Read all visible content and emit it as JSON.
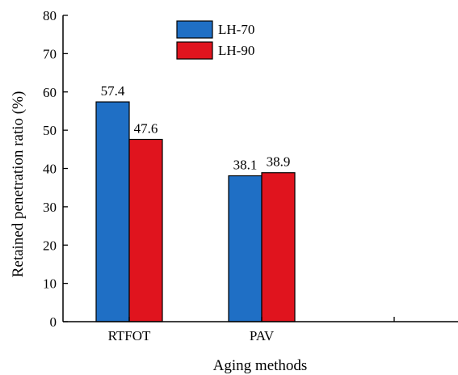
{
  "chart_data": {
    "type": "bar",
    "categories": [
      "RTFOT",
      "PAV"
    ],
    "series": [
      {
        "name": "LH-70",
        "values": [
          57.4,
          38.1
        ],
        "color": "#1f6fc5"
      },
      {
        "name": "LH-90",
        "values": [
          47.6,
          38.9
        ],
        "color": "#e0141e"
      }
    ],
    "data_labels": [
      [
        "57.4",
        "38.1"
      ],
      [
        "47.6",
        "38.9"
      ]
    ],
    "xlabel": "Aging methods",
    "ylabel": "Retained penetration ratio (%)",
    "ylim": [
      0,
      80
    ],
    "yticks": [
      0,
      10,
      20,
      30,
      40,
      50,
      60,
      70,
      80
    ],
    "grid": false,
    "legend_position": "top-center"
  }
}
